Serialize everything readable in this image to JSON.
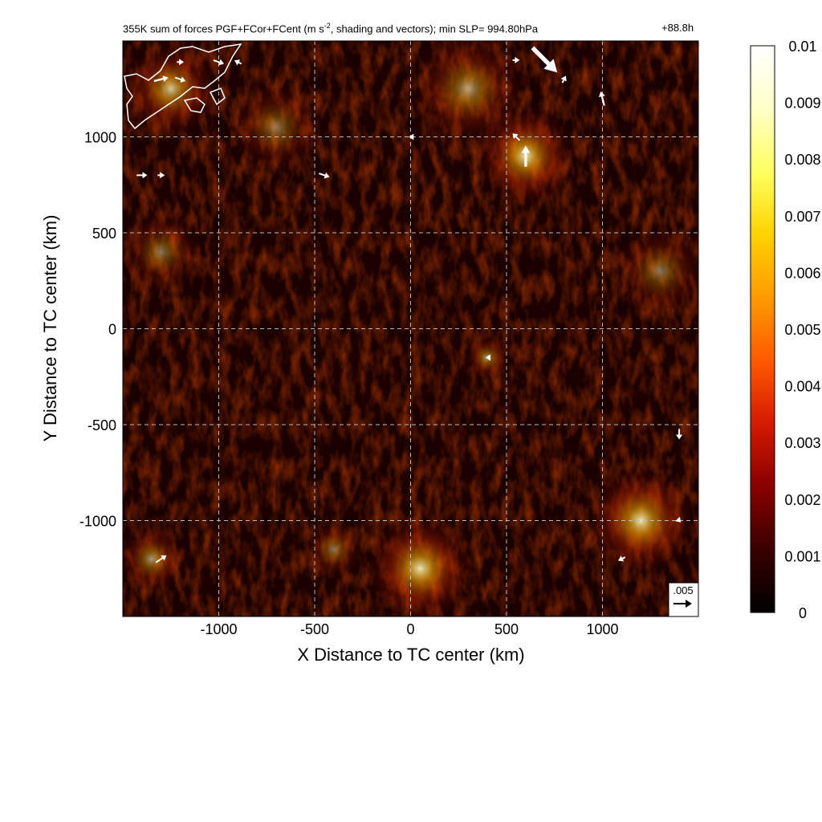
{
  "chart_data": {
    "type": "heatmap",
    "title_main": "355K sum of forces PGF+FCor+FCent (m s",
    "title_sup": "-2",
    "title_rest": ", shading and vectors); min SLP= 994.80hPa",
    "time_label": "+88.8h",
    "xlabel": "X Distance to TC center (km)",
    "ylabel": "Y Distance to TC center (km)",
    "xlim": [
      -1500,
      1500
    ],
    "ylim": [
      -1500,
      1500
    ],
    "xticks": [
      -1000,
      -500,
      0,
      500,
      1000
    ],
    "yticks": [
      1000,
      500,
      0,
      -500,
      -1000
    ],
    "grid": true,
    "colorbar": {
      "range": [
        0,
        0.01
      ],
      "ticks": [
        0.01,
        0.009,
        0.008,
        0.007,
        0.006,
        0.005,
        0.004,
        0.003,
        0.002,
        0.001,
        0
      ],
      "colors": [
        "#000000",
        "#3a0000",
        "#8a0000",
        "#d41a00",
        "#ff5a00",
        "#ff9a00",
        "#ffd200",
        "#ffff60",
        "#ffffc8",
        "#ffffff"
      ]
    },
    "reference_vector": {
      "label": ".005",
      "magnitude": 0.005
    },
    "hotspots": [
      {
        "x": 600,
        "y": 900,
        "r": 260,
        "v": 0.007
      },
      {
        "x": 300,
        "y": 1250,
        "r": 300,
        "v": 0.004
      },
      {
        "x": -1250,
        "y": 1250,
        "r": 250,
        "v": 0.005
      },
      {
        "x": -700,
        "y": 1050,
        "r": 250,
        "v": 0.003
      },
      {
        "x": 50,
        "y": -1250,
        "r": 280,
        "v": 0.006
      },
      {
        "x": 1200,
        "y": -1000,
        "r": 280,
        "v": 0.006
      },
      {
        "x": -1350,
        "y": -1200,
        "r": 180,
        "v": 0.004
      },
      {
        "x": -1300,
        "y": 400,
        "r": 220,
        "v": 0.003
      },
      {
        "x": 1300,
        "y": 300,
        "r": 250,
        "v": 0.003
      },
      {
        "x": 400,
        "y": -150,
        "r": 120,
        "v": 0.004
      },
      {
        "x": -400,
        "y": -1150,
        "r": 160,
        "v": 0.003
      }
    ],
    "vectors": [
      {
        "x": -1200,
        "y": 1390,
        "u": 0.002,
        "v": 0.0
      },
      {
        "x": -1000,
        "y": 1390,
        "u": 0.003,
        "v": -0.001
      },
      {
        "x": -900,
        "y": 1390,
        "u": -0.002,
        "v": 0.001
      },
      {
        "x": -1300,
        "y": 1300,
        "u": 0.004,
        "v": 0.001
      },
      {
        "x": -1200,
        "y": 1300,
        "u": 0.003,
        "v": -0.001
      },
      {
        "x": -1400,
        "y": 800,
        "u": 0.003,
        "v": 0.0
      },
      {
        "x": -1300,
        "y": 800,
        "u": 0.002,
        "v": 0.0
      },
      {
        "x": -450,
        "y": 800,
        "u": 0.003,
        "v": -0.001
      },
      {
        "x": 550,
        "y": 1400,
        "u": 0.002,
        "v": 0.0
      },
      {
        "x": 700,
        "y": 1400,
        "u": 0.007,
        "v": -0.007
      },
      {
        "x": 800,
        "y": 1300,
        "u": 0.001,
        "v": 0.002
      },
      {
        "x": 1000,
        "y": 1200,
        "u": -0.001,
        "v": 0.004
      },
      {
        "x": 600,
        "y": 900,
        "u": 0.0,
        "v": 0.006
      },
      {
        "x": 550,
        "y": 1000,
        "u": -0.002,
        "v": 0.002
      },
      {
        "x": 0,
        "y": 1000,
        "u": -0.001,
        "v": 0.0
      },
      {
        "x": -1300,
        "y": -1200,
        "u": 0.003,
        "v": 0.002
      },
      {
        "x": 1400,
        "y": -550,
        "u": 0.0,
        "v": -0.003
      },
      {
        "x": 1400,
        "y": -1000,
        "u": 0.001,
        "v": -0.001
      },
      {
        "x": 1100,
        "y": -1200,
        "u": -0.002,
        "v": -0.001
      },
      {
        "x": 400,
        "y": -150,
        "u": -0.001,
        "v": 0.0
      }
    ]
  }
}
